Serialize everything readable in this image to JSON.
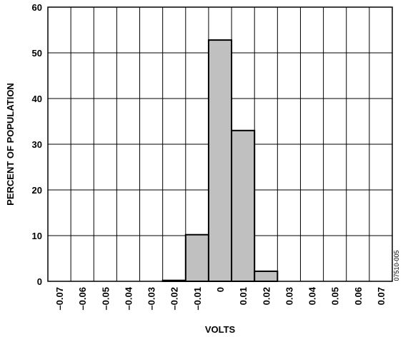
{
  "chart_data": {
    "type": "bar",
    "title": "",
    "xlabel": "VOLTS",
    "ylabel": "PERCENT OF POPULATION",
    "ylim": [
      0,
      60
    ],
    "yticks": [
      0,
      10,
      20,
      30,
      40,
      50,
      60
    ],
    "categories": [
      "–0.07",
      "–0.06",
      "–0.05",
      "–0.04",
      "–0.03",
      "–0.02",
      "–0.01",
      "0",
      "0.01",
      "0.02",
      "0.03",
      "0.04",
      "0.05",
      "0.06",
      "0.07"
    ],
    "values": [
      0,
      0,
      0,
      0,
      0,
      0.2,
      10.2,
      52.8,
      33.0,
      2.2,
      0,
      0,
      0,
      0,
      0
    ],
    "grid": true,
    "bar_color": "#c0c0c0",
    "figure_id": "07510-005"
  }
}
